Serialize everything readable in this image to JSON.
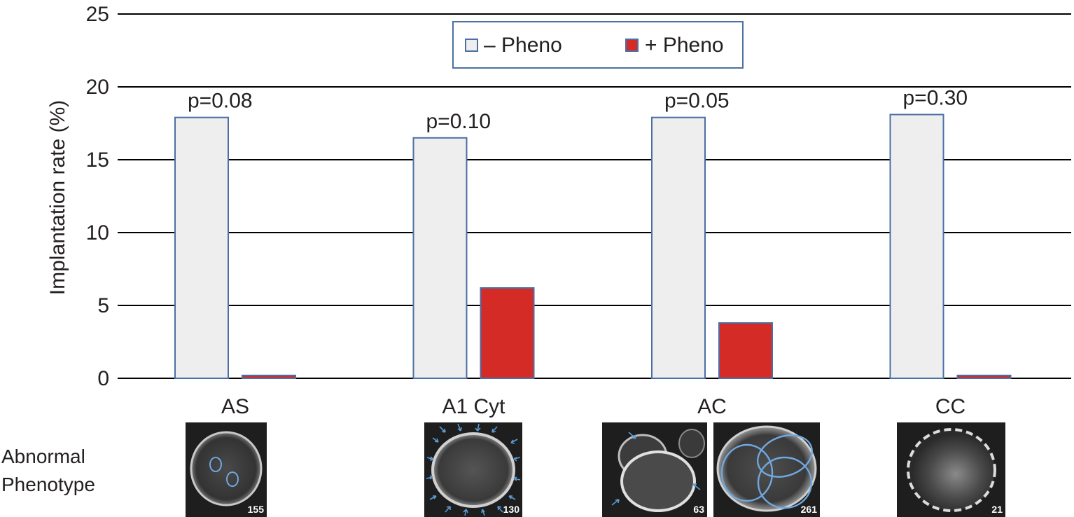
{
  "chart_data": {
    "type": "bar",
    "ylabel": "Implantation rate (%)",
    "xlabel": "",
    "ylim": [
      0,
      25
    ],
    "yticks": [
      "0",
      "5",
      "10",
      "15",
      "20",
      "25"
    ],
    "grid": true,
    "legend_position": "top-center",
    "categories": [
      "AS",
      "A1 Cyt",
      "AC",
      "CC"
    ],
    "series": [
      {
        "name": "– Pheno",
        "color": "#eeeeee",
        "values": [
          17.9,
          16.5,
          17.9,
          18.1
        ]
      },
      {
        "name": "+ Pheno",
        "color": "#d52b27",
        "values": [
          0.2,
          6.2,
          3.8,
          0.2
        ]
      }
    ],
    "annotations": [
      "p=0.08",
      "p=0.10",
      "p=0.05",
      "p=0.30"
    ]
  },
  "colors": {
    "bar_outline": "#4c6fa5",
    "legend_border": "#4c6fa5",
    "grid": "#000000"
  },
  "phenotype_label_line1": "Abnormal",
  "phenotype_label_line2": "Phenotype",
  "thumbnails": [
    {
      "category": "AS",
      "number": "155",
      "marker": "two-small-circles"
    },
    {
      "category": "A1 Cyt",
      "number": "130",
      "marker": "peripheral-arrows"
    },
    {
      "category": "AC",
      "number": "63",
      "marker": "two-arrows"
    },
    {
      "category": "AC",
      "number": "261",
      "marker": "overlapping-ellipses"
    },
    {
      "category": "CC",
      "number": "21",
      "marker": "none"
    }
  ]
}
